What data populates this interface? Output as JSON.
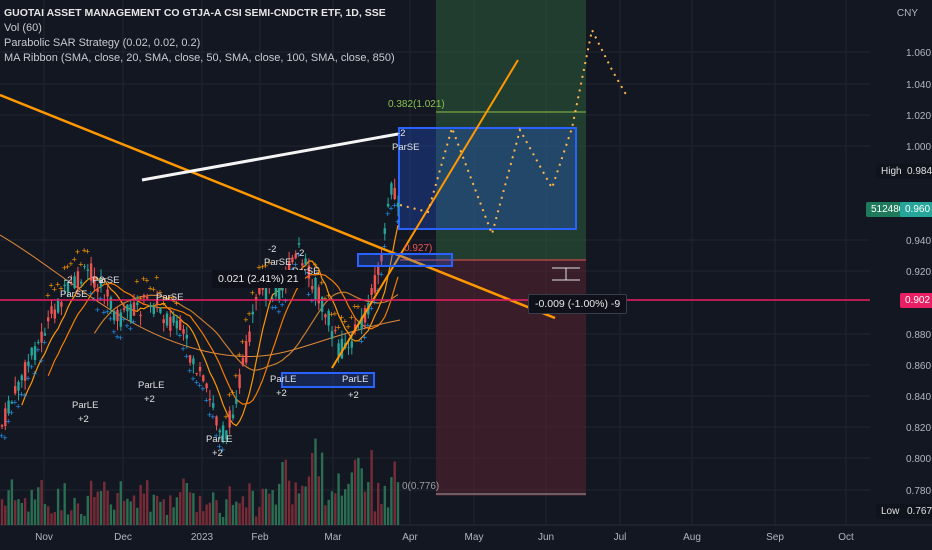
{
  "legend": {
    "title": "GUOTAI ASSET MANAGEMENT CO GTJA-A CSI SEMI-CNDCTR ETF, 1D, SSE",
    "vol": "Vol (60)",
    "psar": "Parabolic SAR Strategy (0.02, 0.02, 0.2)",
    "ribbon": "MA Ribbon (SMA, close, 20, SMA, close, 50, SMA, close, 100, SMA, close, 850)"
  },
  "currency": "CNY",
  "y_axis": {
    "ticks": [
      "1.060",
      "1.040",
      "1.020",
      "1.000",
      "0.940",
      "0.920",
      "0.880",
      "0.860",
      "0.840",
      "0.820",
      "0.800",
      "0.780"
    ]
  },
  "x_axis": {
    "ticks": [
      "Nov",
      "Dec",
      "2023",
      "Feb",
      "Mar",
      "Apr",
      "May",
      "Jun",
      "Jul",
      "Aug",
      "Sep",
      "Oct"
    ]
  },
  "price_badges": {
    "high_label": "High",
    "high_value": "0.984",
    "vol_value": "512480",
    "last_value": "0.960",
    "line_value": "0.902",
    "low_label": "Low",
    "low_value": "0.767"
  },
  "annotations": {
    "measure_up": "0.021 (2.41%) 21",
    "measure_down": "-0.009 (-1.00%) -9",
    "fib_top": "0.382(1.021)",
    "fib_bottom": "0(0.776)",
    "fib_mid": "0.927)",
    "signals": [
      {
        "text": "-2"
      },
      {
        "text": "ParSE"
      },
      {
        "text": "-2"
      },
      {
        "text": "ParSE"
      },
      {
        "text": "ParSE"
      },
      {
        "text": "-2"
      },
      {
        "text": "ParSE"
      },
      {
        "text": "-2"
      },
      {
        "text": "ParSE"
      },
      {
        "text": "-2"
      },
      {
        "text": "ParSE"
      },
      {
        "text": "ParLE"
      },
      {
        "text": "+2"
      },
      {
        "text": "ParLE"
      },
      {
        "text": "+2"
      },
      {
        "text": "ParLE"
      },
      {
        "text": "+2"
      },
      {
        "text": "ParLE"
      },
      {
        "text": "+2"
      },
      {
        "text": "ParLE"
      },
      {
        "text": "+2"
      }
    ]
  },
  "colors": {
    "background": "#131722",
    "up": "#26a69a",
    "down": "#ef5350",
    "sar_up": "#2196f3",
    "sar_down": "#ff9800",
    "trend": "#ff9800",
    "white_line": "#f5f5f5",
    "magenta": "#e91e63",
    "blue_box": "#2962ff"
  }
}
